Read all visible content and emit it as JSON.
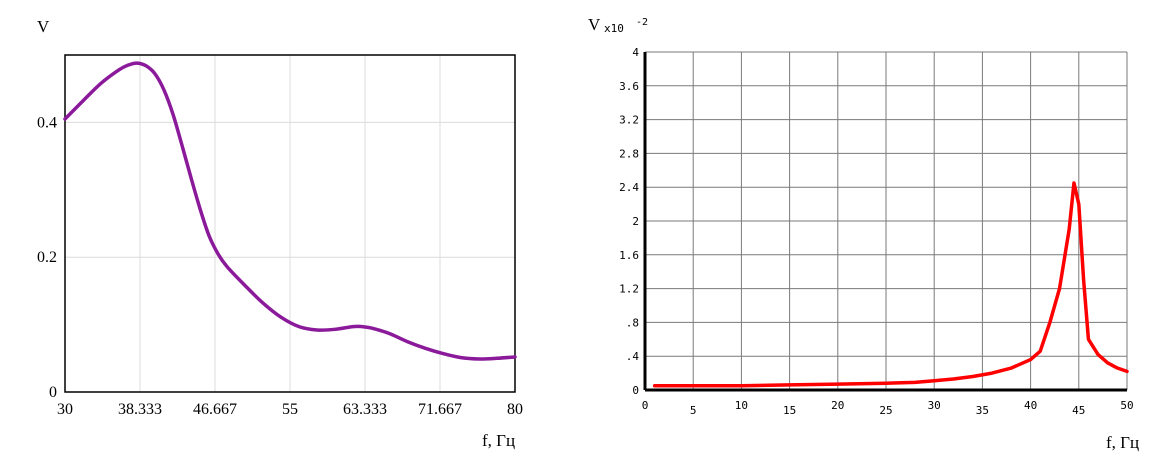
{
  "chart_data": [
    {
      "type": "line",
      "ylabel": "V",
      "xlabel": "f, Гц",
      "xlim": [
        30,
        80
      ],
      "ylim": [
        0,
        0.5
      ],
      "x_ticks": [
        "30",
        "38.333",
        "46.667",
        "55",
        "63.333",
        "71.667",
        "80"
      ],
      "y_ticks": [
        "0",
        "0.2",
        "0.4"
      ],
      "grid": true,
      "color": "#8b1a9b",
      "series": [
        {
          "x": [
            30,
            32,
            34,
            36,
            37,
            38,
            39,
            40,
            41,
            42,
            43,
            44,
            45,
            46,
            47,
            48,
            50,
            52,
            54,
            56,
            58,
            60,
            62,
            63,
            64,
            66,
            68,
            70,
            72,
            74,
            76,
            78,
            80
          ],
          "y": [
            0.405,
            0.432,
            0.458,
            0.478,
            0.485,
            0.488,
            0.484,
            0.472,
            0.448,
            0.412,
            0.366,
            0.318,
            0.272,
            0.232,
            0.205,
            0.186,
            0.158,
            0.132,
            0.111,
            0.097,
            0.092,
            0.093,
            0.097,
            0.097,
            0.095,
            0.087,
            0.075,
            0.065,
            0.057,
            0.051,
            0.049,
            0.05,
            0.052
          ]
        }
      ]
    },
    {
      "type": "line",
      "ylabel": "V",
      "y_scale_label": "x10",
      "y_scale_exp": "-2",
      "xlabel": "f, Гц",
      "xlim": [
        0,
        50
      ],
      "ylim": [
        0,
        4
      ],
      "x_ticks": [
        "0",
        "5",
        "10",
        "15",
        "20",
        "25",
        "30",
        "35",
        "40",
        "45",
        "50"
      ],
      "y_ticks": [
        "0",
        ".4",
        ".8",
        "1.2",
        "1.6",
        "2",
        "2.4",
        "2.8",
        "3.2",
        "3.6",
        "4"
      ],
      "grid": true,
      "color": "#ff0000",
      "series": [
        {
          "x": [
            1,
            5,
            10,
            15,
            20,
            25,
            28,
            30,
            32,
            34,
            36,
            38,
            40,
            41,
            42,
            43,
            44,
            44.5,
            45,
            45.5,
            46,
            47,
            48,
            49,
            50
          ],
          "y": [
            0.05,
            0.05,
            0.05,
            0.06,
            0.07,
            0.08,
            0.09,
            0.11,
            0.13,
            0.16,
            0.2,
            0.26,
            0.36,
            0.46,
            0.8,
            1.2,
            1.9,
            2.45,
            2.2,
            1.3,
            0.6,
            0.42,
            0.32,
            0.26,
            0.22
          ]
        }
      ]
    }
  ]
}
